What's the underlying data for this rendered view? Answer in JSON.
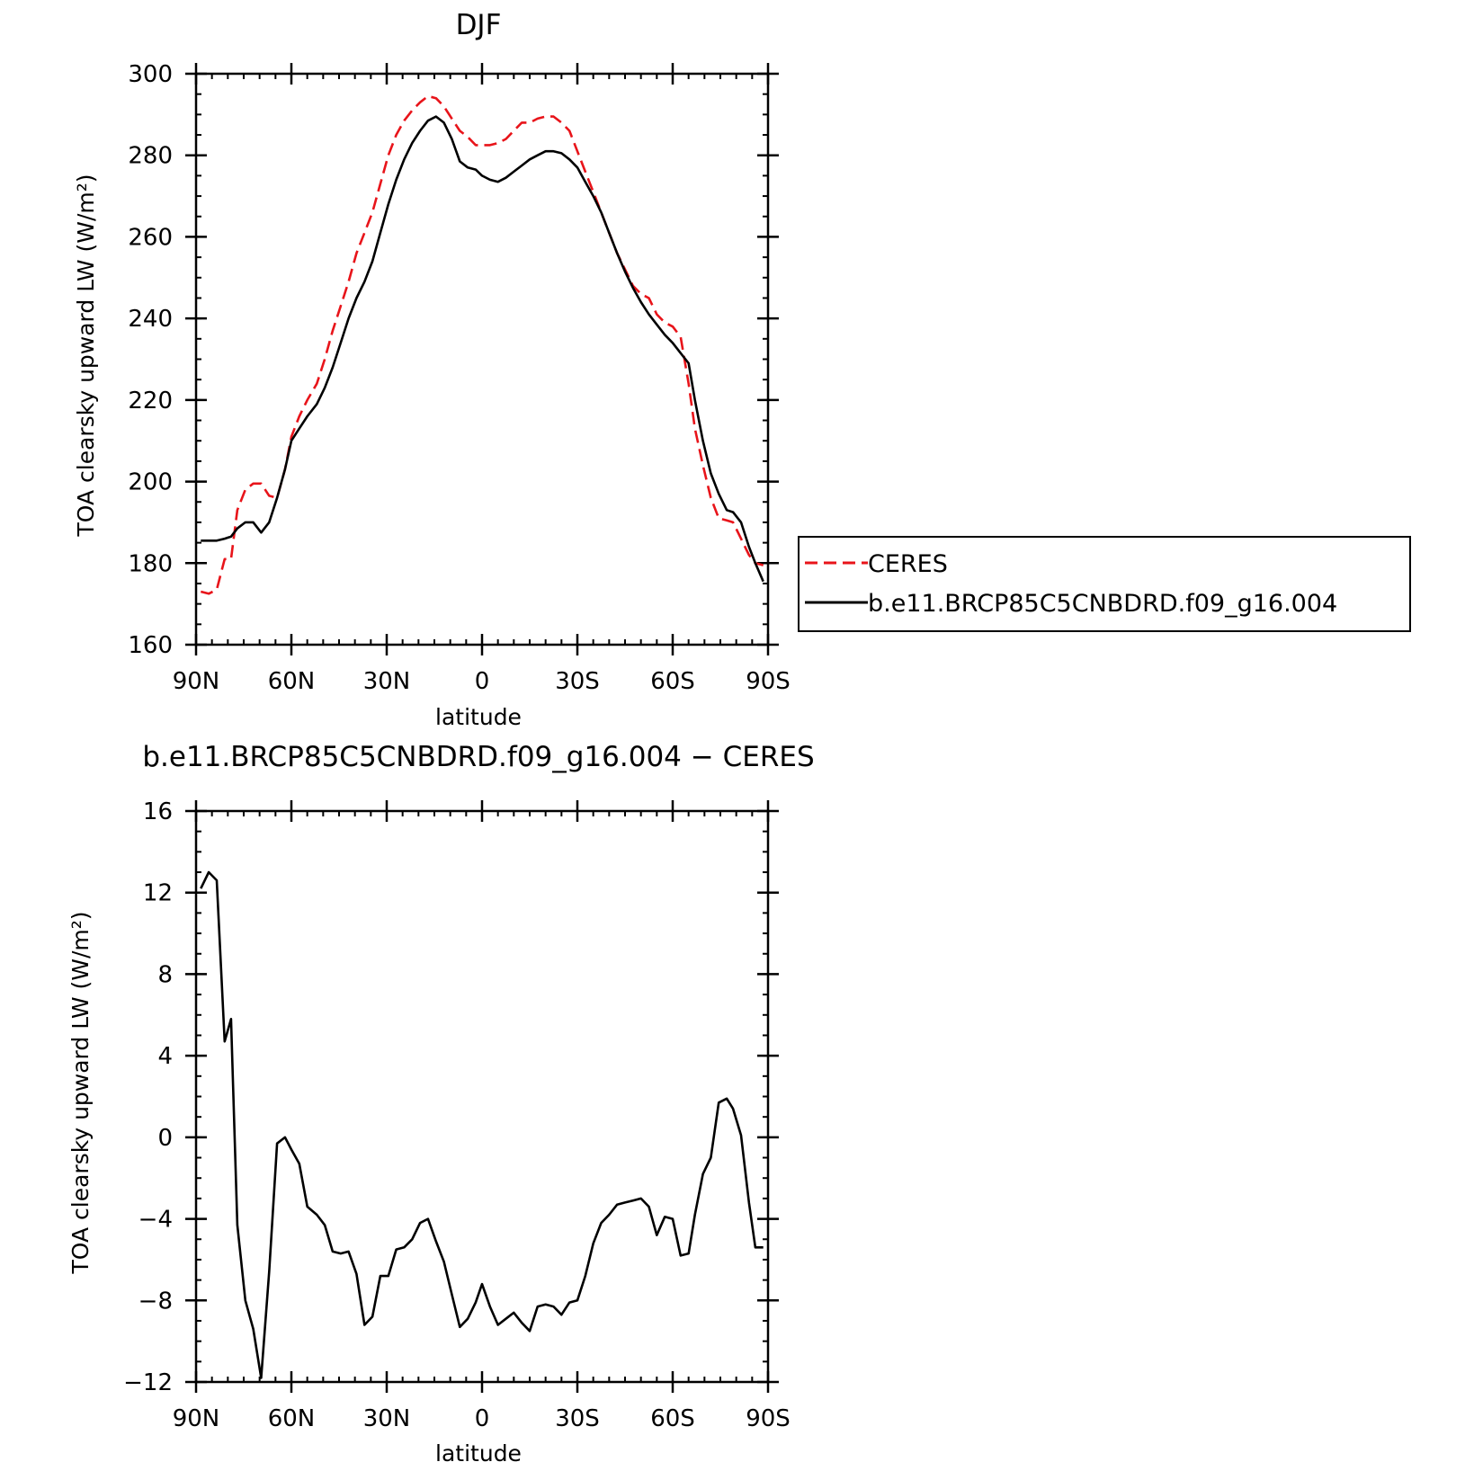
{
  "chart_data": [
    {
      "type": "line",
      "title": "DJF",
      "xlabel": "latitude",
      "ylabel": "TOA clearsky upward LW (W/m²)",
      "xlim": [
        90,
        -90
      ],
      "ylim": [
        160,
        300
      ],
      "x_ticks": [
        {
          "value": 90,
          "label": "90N"
        },
        {
          "value": 60,
          "label": "60N"
        },
        {
          "value": 30,
          "label": "30N"
        },
        {
          "value": 0,
          "label": "0"
        },
        {
          "value": -30,
          "label": "30S"
        },
        {
          "value": -60,
          "label": "60S"
        },
        {
          "value": -90,
          "label": "90S"
        }
      ],
      "y_ticks": [
        {
          "value": 160,
          "label": "160"
        },
        {
          "value": 180,
          "label": "180"
        },
        {
          "value": 200,
          "label": "200"
        },
        {
          "value": 220,
          "label": "220"
        },
        {
          "value": 240,
          "label": "240"
        },
        {
          "value": 260,
          "label": "260"
        },
        {
          "value": 280,
          "label": "280"
        },
        {
          "value": 300,
          "label": "300"
        }
      ],
      "legend": {
        "placement": "right"
      },
      "series": [
        {
          "name": "CERES",
          "color": "#e8141a",
          "dash": true,
          "x": [
            88.5,
            86,
            83.5,
            81,
            79,
            77,
            74.5,
            72,
            69.5,
            67,
            64.5,
            62,
            60,
            57.5,
            55,
            52,
            49.5,
            47,
            44.5,
            42,
            39.5,
            37,
            34.5,
            32,
            29.5,
            27,
            24.5,
            22,
            19.5,
            17,
            14.5,
            12,
            9.5,
            7,
            4.5,
            2,
            0,
            -2.5,
            -5,
            -7.5,
            -10,
            -12.5,
            -15,
            -17.5,
            -20,
            -22.5,
            -25,
            -27.5,
            -30,
            -32.5,
            -35,
            -37.5,
            -40,
            -42.5,
            -45,
            -47.5,
            -50,
            -52.5,
            -55,
            -57.5,
            -60,
            -62.5,
            -65,
            -67,
            -69.5,
            -72,
            -74.5,
            -77,
            -79,
            -81.5,
            -84,
            -86,
            -88.5
          ],
          "values": [
            173,
            172.5,
            173.5,
            181,
            181,
            193,
            198,
            199.5,
            199.5,
            196.5,
            196,
            203,
            211,
            216,
            220,
            224,
            230,
            237,
            243,
            249,
            256,
            261,
            266,
            273,
            280,
            285,
            288.5,
            291,
            293,
            294.5,
            294,
            292,
            289,
            286,
            284.5,
            282.5,
            282.5,
            282.5,
            283,
            284,
            286,
            288,
            288,
            289,
            289.5,
            289.5,
            288,
            286,
            281,
            276,
            271,
            266,
            261,
            256,
            252,
            248,
            246,
            245,
            241,
            239,
            238,
            235.5,
            224,
            213,
            204,
            196,
            191,
            190.5,
            190,
            186,
            182,
            180,
            179.5
          ]
        },
        {
          "name": "b.e11.BRCP85C5CNBDRD.f09_g16.004",
          "color": "#000000",
          "dash": false,
          "x": [
            88.5,
            86,
            83.5,
            81,
            79,
            77,
            74.5,
            72,
            69.5,
            67,
            64.5,
            62,
            60,
            57.5,
            55,
            52,
            49.5,
            47,
            44.5,
            42,
            39.5,
            37,
            34.5,
            32,
            29.5,
            27,
            24.5,
            22,
            19.5,
            17,
            14.5,
            12,
            9.5,
            7,
            4.5,
            2,
            0,
            -2.5,
            -5,
            -7.5,
            -10,
            -12.5,
            -15,
            -17.5,
            -20,
            -22.5,
            -25,
            -27.5,
            -30,
            -32.5,
            -35,
            -37.5,
            -40,
            -42.5,
            -45,
            -47.5,
            -50,
            -52.5,
            -55,
            -57.5,
            -60,
            -62.5,
            -65,
            -67,
            -69.5,
            -72,
            -74.5,
            -77,
            -79,
            -81.5,
            -84,
            -86,
            -88.5
          ],
          "values": [
            185.5,
            185.5,
            185.5,
            186,
            186.5,
            188.5,
            190,
            190,
            187.5,
            190,
            196,
            203,
            210,
            213,
            216,
            219,
            223,
            228,
            234,
            240,
            245,
            249,
            254,
            261,
            268,
            274,
            279,
            283,
            286,
            288.5,
            289.5,
            288,
            284,
            278.5,
            277,
            276.5,
            275,
            274,
            273.5,
            274.5,
            276,
            277.5,
            279,
            280,
            281,
            281,
            280.5,
            279,
            277,
            273.5,
            270,
            266,
            261,
            256,
            251.5,
            247.5,
            244,
            241,
            238.5,
            236,
            234,
            231.5,
            229,
            220,
            210,
            202,
            197,
            193,
            192.5,
            190,
            184,
            180,
            175.5
          ]
        }
      ]
    },
    {
      "type": "line",
      "title": "b.e11.BRCP85C5CNBDRD.f09_g16.004 − CERES",
      "xlabel": "latitude",
      "ylabel": "TOA clearsky upward LW (W/m²)",
      "xlim": [
        90,
        -90
      ],
      "ylim": [
        -12,
        16
      ],
      "x_ticks": [
        {
          "value": 90,
          "label": "90N"
        },
        {
          "value": 60,
          "label": "60N"
        },
        {
          "value": 30,
          "label": "30N"
        },
        {
          "value": 0,
          "label": "0"
        },
        {
          "value": -30,
          "label": "30S"
        },
        {
          "value": -60,
          "label": "60S"
        },
        {
          "value": -90,
          "label": "90S"
        }
      ],
      "y_ticks": [
        {
          "value": -12,
          "label": "−12"
        },
        {
          "value": -8,
          "label": "−8"
        },
        {
          "value": -4,
          "label": "−4"
        },
        {
          "value": 0,
          "label": "0"
        },
        {
          "value": 4,
          "label": "4"
        },
        {
          "value": 8,
          "label": "8"
        },
        {
          "value": 12,
          "label": "12"
        },
        {
          "value": 16,
          "label": "16"
        }
      ],
      "series": [
        {
          "color": "#000000",
          "dash": false,
          "x": [
            88.5,
            86,
            83.5,
            81,
            79,
            77,
            74.5,
            72,
            69.5,
            67,
            64.5,
            62,
            60,
            57.5,
            55,
            52,
            49.5,
            47,
            44.5,
            42,
            39.5,
            37,
            34.5,
            32,
            29.5,
            27,
            24.5,
            22,
            19.5,
            17,
            14.5,
            12,
            9.5,
            7,
            4.5,
            2,
            0,
            -2.5,
            -5,
            -7.5,
            -10,
            -12.5,
            -15,
            -17.5,
            -20,
            -22.5,
            -25,
            -27.5,
            -30,
            -32.5,
            -35,
            -37.5,
            -40,
            -42.5,
            -45,
            -47.5,
            -50,
            -52.5,
            -55,
            -57.5,
            -60,
            -62.5,
            -65,
            -67,
            -69.5,
            -72,
            -74.5,
            -77,
            -79,
            -81.5,
            -84,
            -86,
            -88.5
          ],
          "values": [
            12.2,
            13,
            12.6,
            4.7,
            5.8,
            -4.3,
            -8,
            -9.4,
            -11.8,
            -6.6,
            -0.3,
            0,
            -0.6,
            -1.3,
            -3.4,
            -3.8,
            -4.3,
            -5.6,
            -5.7,
            -5.6,
            -6.7,
            -9.2,
            -8.8,
            -6.8,
            -6.8,
            -5.5,
            -5.4,
            -5,
            -4.2,
            -4,
            -5.1,
            -6.1,
            -7.7,
            -9.3,
            -8.9,
            -8.1,
            -7.2,
            -8.3,
            -9.2,
            -8.9,
            -8.6,
            -9.1,
            -9.5,
            -8.3,
            -8.2,
            -8.3,
            -8.7,
            -8.1,
            -8,
            -6.8,
            -5.2,
            -4.2,
            -3.8,
            -3.3,
            -3.2,
            -3.1,
            -3,
            -3.4,
            -4.8,
            -3.9,
            -4,
            -5.8,
            -5.7,
            -3.8,
            -1.8,
            -1,
            1.7,
            1.9,
            1.4,
            0.1,
            -3.2,
            -5.4,
            -5.4
          ]
        }
      ]
    }
  ]
}
